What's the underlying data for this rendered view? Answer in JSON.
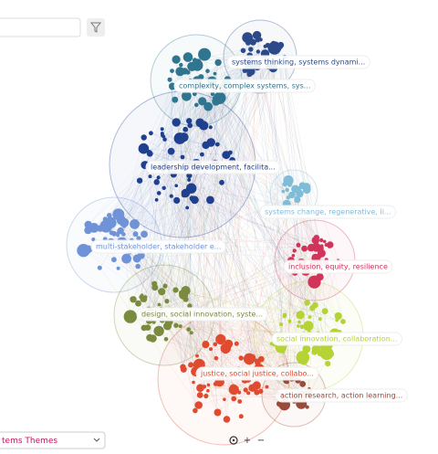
{
  "clusters": [
    {
      "label": "systems thinking, systems dynami..."
    },
    {
      "label": "complexity, complex systems, sys..."
    },
    {
      "label": "leadership development, facilita..."
    },
    {
      "label": "systems change, regenerative, li..."
    },
    {
      "label": "multi-stakeholder, stakeholder e..."
    },
    {
      "label": "inclusion, equity, resilience"
    },
    {
      "label": "design, social innovation, syste..."
    },
    {
      "label": "social innovation, collaboration..."
    },
    {
      "label": "justice, social justice, collabo..."
    },
    {
      "label": "action research, action learning..."
    }
  ],
  "theme_select": {
    "value": "tems Themes"
  },
  "zoom_controls": {
    "zoom_in": "+",
    "zoom_out": "−"
  }
}
